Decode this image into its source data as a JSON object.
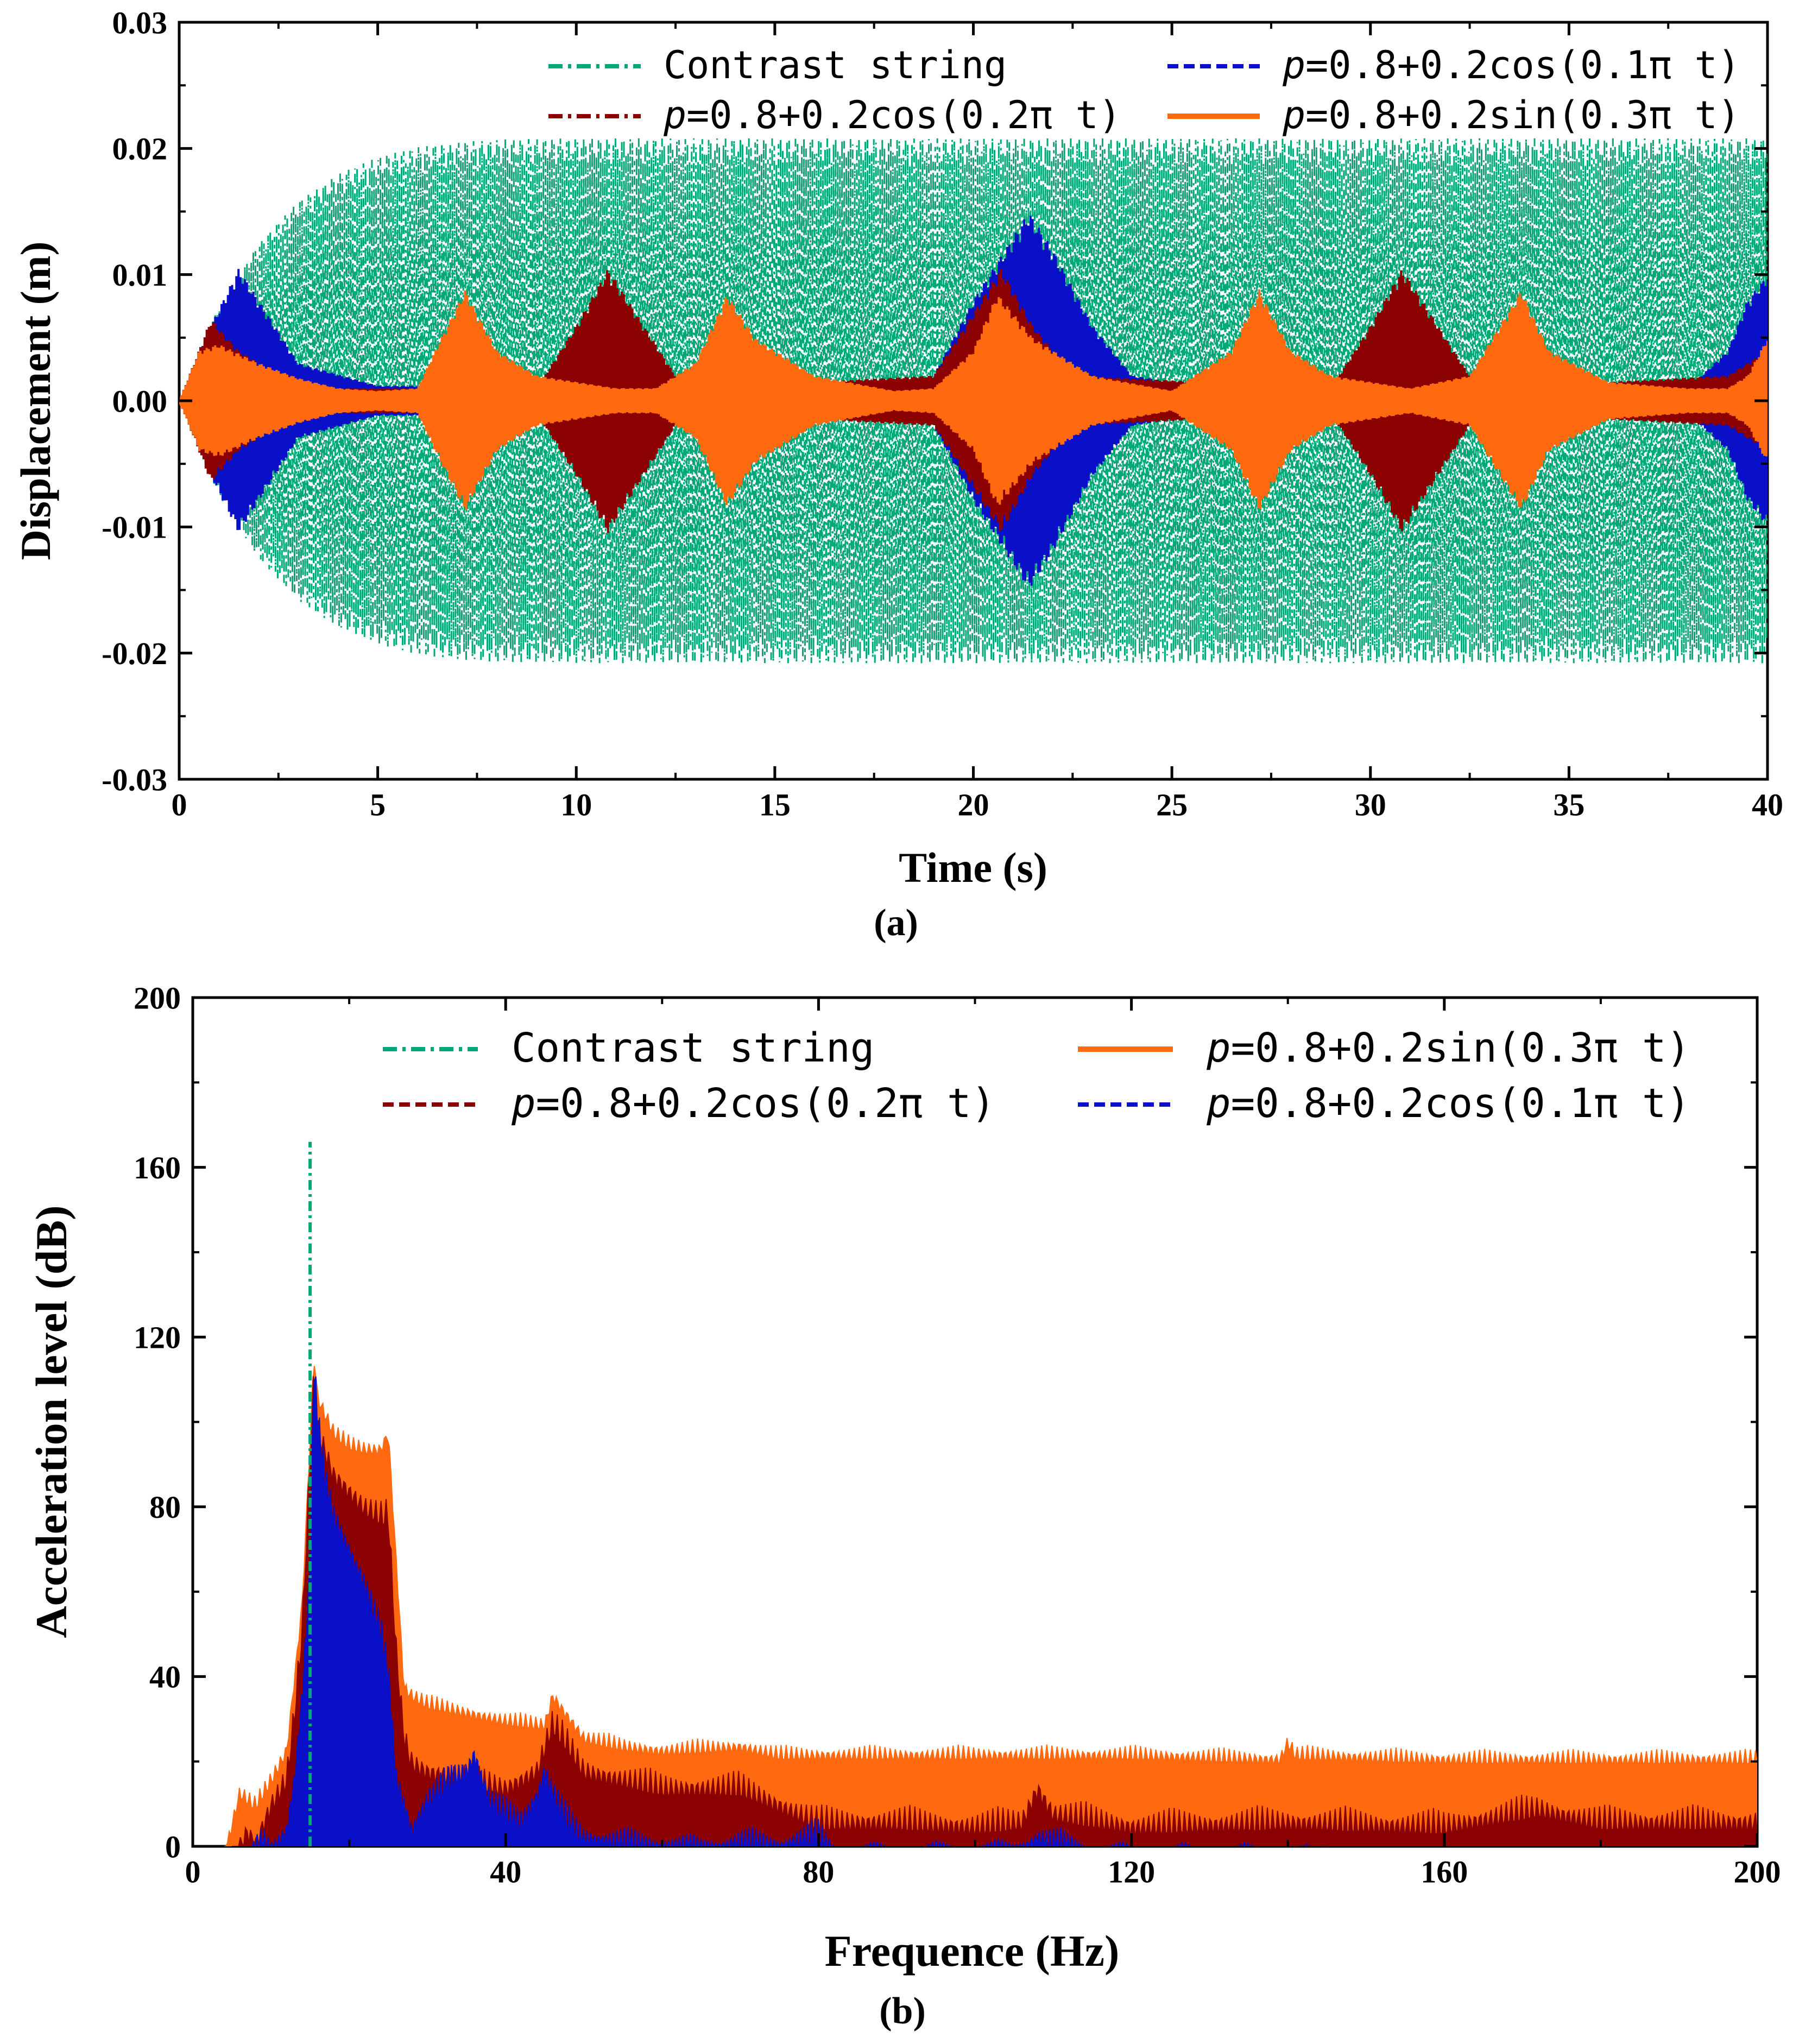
{
  "chart_data": [
    {
      "type": "line",
      "panel_label": "(a)",
      "xlabel": "Time (s)",
      "ylabel": "Displacement (m)",
      "xlim": [
        0,
        40
      ],
      "ylim": [
        -0.03,
        0.03
      ],
      "xticks": [
        0,
        5,
        10,
        15,
        20,
        25,
        30,
        35,
        40
      ],
      "xtick_labels": [
        "0",
        "5",
        "10",
        "15",
        "20",
        "25",
        "30",
        "35",
        "40"
      ],
      "yticks": [
        -0.03,
        -0.02,
        -0.01,
        0.0,
        0.01,
        0.02,
        0.03
      ],
      "ytick_labels": [
        "-0.03",
        "-0.02",
        "-0.01",
        "0.00",
        "0.01",
        "0.02",
        "0.03"
      ],
      "legend_position": "top-right",
      "series": [
        {
          "name": "Contrast string",
          "prefix": "",
          "formula": "Contrast string",
          "color": "#00A877",
          "style": "dash-dot",
          "envelope": {
            "t": [
              0,
              1,
              2,
              3,
              4,
              5,
              6,
              7,
              8,
              10,
              40
            ],
            "amp": [
              0,
              0.0075,
              0.0125,
              0.0158,
              0.018,
              0.0193,
              0.0201,
              0.0205,
              0.0207,
              0.0208,
              0.0208
            ]
          }
        },
        {
          "name": "p=0.8+0.2cos(0.1πt)",
          "prefix": "p",
          "formula": "=0.8+0.2cos(0.1π t)",
          "color": "#0A10C8",
          "style": "dash",
          "envelope": {
            "t": [
              0,
              0.8,
              1.5,
              2.2,
              3,
              5,
              18,
              19,
              20,
              21,
              21.4,
              22,
              23,
              24,
              26,
              38,
              39,
              39.5,
              40
            ],
            "amp": [
              0,
              0.006,
              0.0105,
              0.007,
              0.003,
              0.0012,
              0.001,
              0.002,
              0.008,
              0.013,
              0.015,
              0.012,
              0.006,
              0.002,
              0.001,
              0.001,
              0.004,
              0.008,
              0.01
            ]
          }
        },
        {
          "name": "p=0.8+0.2cos(0.2πt)",
          "prefix": "p",
          "formula": "=0.8+0.2cos(0.2π t)",
          "color": "#8B0000",
          "style": "dash-dot",
          "envelope": {
            "t": [
              0,
              0.8,
              1.5,
              3,
              9,
              10,
              10.8,
              11.5,
              12.5,
              13,
              19,
              20,
              20.7,
              21.5,
              22.5,
              29,
              30,
              30.8,
              31.5,
              32.5,
              33,
              39,
              40
            ],
            "amp": [
              0,
              0.0065,
              0.004,
              0.001,
              0.001,
              0.006,
              0.0105,
              0.007,
              0.002,
              0.001,
              0.002,
              0.007,
              0.0105,
              0.006,
              0.002,
              0.001,
              0.006,
              0.0105,
              0.007,
              0.002,
              0.001,
              0.002,
              0.004
            ]
          }
        },
        {
          "name": "p=0.8+0.2sin(0.3πt)",
          "prefix": "p",
          "formula": "=0.8+0.2sin(0.3π t)",
          "color": "#FF6A10",
          "style": "solid",
          "envelope": {
            "t": [
              0,
              0.5,
              1,
              2,
              3,
              4,
              5,
              6,
              6.6,
              7.2,
              8,
              9,
              10,
              11,
              12,
              13,
              13.8,
              14.5,
              16,
              18,
              19,
              20,
              20.6,
              21.5,
              23,
              25,
              26.5,
              27.2,
              28,
              29,
              31,
              32.5,
              33.8,
              34.5,
              36,
              38,
              39,
              39.5,
              40
            ],
            "amp": [
              0,
              0.004,
              0.0045,
              0.003,
              0.0018,
              0.001,
              0.0008,
              0.001,
              0.005,
              0.0088,
              0.004,
              0.002,
              0.0015,
              0.001,
              0.001,
              0.003,
              0.0085,
              0.005,
              0.002,
              0.0008,
              0.001,
              0.004,
              0.0085,
              0.005,
              0.002,
              0.0008,
              0.004,
              0.0088,
              0.004,
              0.002,
              0.001,
              0.002,
              0.0088,
              0.004,
              0.0015,
              0.001,
              0.001,
              0.002,
              0.005
            ]
          }
        }
      ]
    },
    {
      "type": "area",
      "panel_label": "(b)",
      "xlabel": "Frequence (Hz)",
      "ylabel": "Acceleration level (dB)",
      "xlim": [
        0,
        200
      ],
      "ylim": [
        0,
        200
      ],
      "xticks": [
        0,
        40,
        80,
        120,
        160,
        200
      ],
      "xtick_labels": [
        "0",
        "40",
        "80",
        "120",
        "160",
        "200"
      ],
      "yticks": [
        0,
        40,
        80,
        120,
        160,
        200
      ],
      "ytick_labels": [
        "0",
        "40",
        "80",
        "120",
        "160",
        "200"
      ],
      "legend_position": "top-right",
      "series": [
        {
          "name": "Contrast string",
          "prefix": "",
          "formula": "Contrast string",
          "color": "#00A877",
          "style": "dash-dot",
          "points": {
            "x": [
              15.0,
              15.0,
              15.0
            ],
            "y": [
              0,
              166,
              0
            ]
          }
        },
        {
          "name": "p=0.8+0.2sin(0.3πt)",
          "prefix": "p",
          "formula": "=0.8+0.2sin(0.3π t)",
          "color": "#FF6A10",
          "style": "solid",
          "points": {
            "x": [
              4,
              6,
              8,
              10,
              12,
              13,
              14,
              15,
              15.5,
              16,
              18,
              20,
              22,
              24,
              25,
              26,
              27,
              28,
              30,
              35,
              40,
              45,
              46,
              50,
              55,
              60,
              70,
              75,
              80,
              100,
              120,
              139,
              140,
              141,
              160,
              180,
              200
            ],
            "y": [
              0,
              15,
              12,
              18,
              25,
              42,
              60,
              98,
              118,
              108,
              100,
              97,
              96,
              96,
              100,
              70,
              40,
              38,
              36,
              34,
              32,
              31,
              38,
              28,
              26,
              25,
              26,
              24,
              24,
              24,
              24,
              23,
              27,
              24,
              23,
              23,
              23
            ]
          }
        },
        {
          "name": "p=0.8+0.2cos(0.2πt)",
          "prefix": "p",
          "formula": "=0.8+0.2cos(0.2π t)",
          "color": "#8B0000",
          "style": "dash",
          "points": {
            "x": [
              5,
              7,
              8,
              10,
              12,
              13,
              14,
              15,
              15.5,
              16,
              18,
              20,
              22,
              24,
              25,
              26,
              27,
              28,
              30,
              35,
              40,
              44,
              46,
              48,
              50,
              55,
              60,
              70,
              75,
              80,
              90,
              100,
              106,
              108,
              110,
              120,
              140,
              160,
              172,
              180,
              200
            ],
            "y": [
              0,
              8,
              5,
              14,
              20,
              35,
              55,
              95,
              116,
              102,
              92,
              88,
              84,
              82,
              82,
              50,
              30,
              24,
              22,
              20,
              18,
              22,
              33,
              28,
              22,
              20,
              18,
              18,
              14,
              10,
              10,
              9,
              10,
              18,
              12,
              9,
              10,
              9,
              13,
              10,
              10
            ]
          }
        },
        {
          "name": "p=0.8+0.2cos(0.1πt)",
          "prefix": "p",
          "formula": "=0.8+0.2cos(0.1π t)",
          "color": "#0A10C8",
          "style": "dash",
          "points": {
            "x": [
              7,
              9,
              10,
              12,
              13,
              14,
              15,
              15.5,
              16,
              17,
              18,
              20,
              22,
              24,
              25,
              26,
              27,
              28,
              30,
              33,
              35,
              36,
              37,
              38,
              40,
              42,
              44,
              45,
              46,
              48,
              50,
              55,
              60,
              65,
              70,
              75,
              80,
              82,
              90,
              100,
              105,
              108,
              112,
              115,
              120,
              130,
              140,
              145
            ],
            "y": [
              0,
              5,
              2,
              8,
              20,
              40,
              70,
              118,
              104,
              90,
              82,
              74,
              66,
              55,
              45,
              20,
              14,
              8,
              15,
              20,
              22,
              26,
              20,
              15,
              12,
              10,
              16,
              22,
              17,
              10,
              6,
              5,
              4,
              3,
              5,
              4,
              7,
              2,
              1,
              2,
              2,
              6,
              4,
              2,
              1,
              1,
              1,
              0
            ]
          }
        }
      ]
    }
  ]
}
